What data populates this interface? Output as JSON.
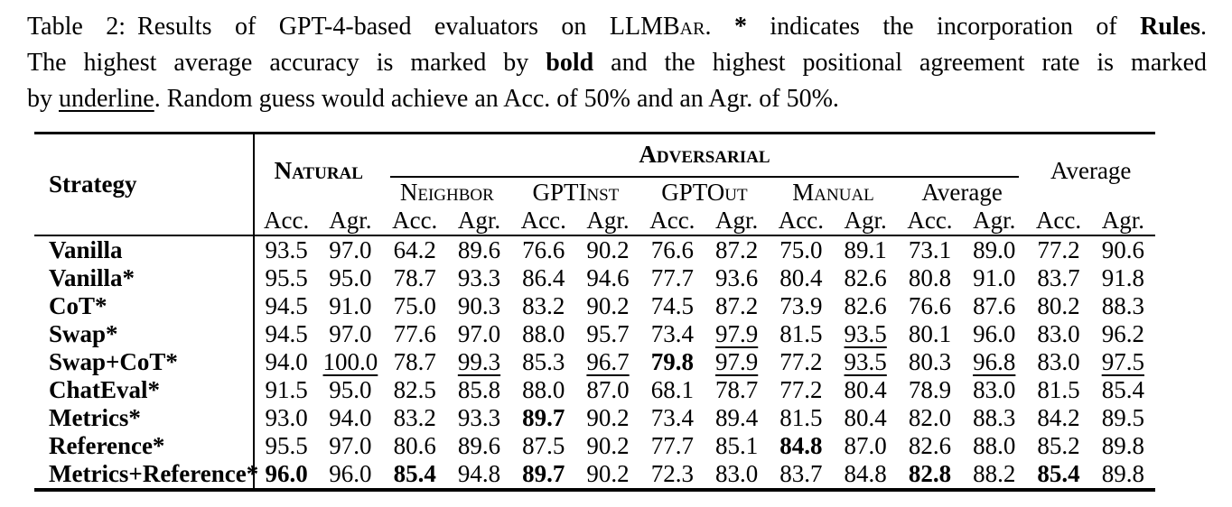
{
  "caption": {
    "lines": [
      [
        {
          "t": "Table 2:",
          "style": "label"
        },
        {
          "t": "Results of GPT-4-based evaluators on ",
          "style": ""
        },
        {
          "t": "LLMBar",
          "style": "sc"
        },
        {
          "t": ". ",
          "style": ""
        },
        {
          "t": "*",
          "style": "b"
        },
        {
          "t": " indicates the incorporation of ",
          "style": ""
        },
        {
          "t": "Rules",
          "style": "b"
        },
        {
          "t": ".",
          "style": ""
        }
      ],
      [
        {
          "t": "The highest average accuracy is marked by ",
          "style": ""
        },
        {
          "t": "bold",
          "style": "b"
        },
        {
          "t": " and the highest positional agreement rate is marked",
          "style": ""
        }
      ],
      [
        {
          "t": "by ",
          "style": ""
        },
        {
          "t": "underline",
          "style": "u"
        },
        {
          "t": ". Random guess would achieve an Acc. of 50% and an Agr. of 50%.",
          "style": ""
        }
      ]
    ]
  },
  "table": {
    "header": {
      "strategy": "Strategy",
      "natural": "Natural",
      "adversarial": "Adversarial",
      "average": "Average",
      "adv_groups": [
        "Neighbor",
        "GPTInst",
        "GPTOut",
        "Manual",
        "Average"
      ],
      "acc": "Acc.",
      "agr": "Agr."
    },
    "rows": [
      {
        "strategy": "Vanilla",
        "cells": [
          "93.5",
          "97.0",
          "64.2",
          "89.6",
          "76.6",
          "90.2",
          "76.6",
          "87.2",
          "75.0",
          "89.1",
          "73.1",
          "89.0",
          "77.2",
          "90.6"
        ]
      },
      {
        "strategy": "Vanilla*",
        "cells": [
          "95.5",
          "95.0",
          "78.7",
          "93.3",
          "86.4",
          "94.6",
          "77.7",
          "93.6",
          "80.4",
          "82.6",
          "80.8",
          "91.0",
          "83.7",
          "91.8"
        ]
      },
      {
        "strategy": "CoT*",
        "cells": [
          "94.5",
          "91.0",
          "75.0",
          "90.3",
          "83.2",
          "90.2",
          "74.5",
          "87.2",
          "73.9",
          "82.6",
          "76.6",
          "87.6",
          "80.2",
          "88.3"
        ]
      },
      {
        "strategy": "Swap*",
        "cells": [
          "94.5",
          "97.0",
          "77.6",
          "97.0",
          "88.0",
          "95.7",
          "73.4",
          "u:97.9",
          "81.5",
          "u:93.5",
          "80.1",
          "96.0",
          "83.0",
          "96.2"
        ]
      },
      {
        "strategy": "Swap+CoT*",
        "cells": [
          "94.0",
          "u:100.0",
          "78.7",
          "u:99.3",
          "85.3",
          "u:96.7",
          "b:79.8",
          "u:97.9",
          "77.2",
          "u:93.5",
          "80.3",
          "u:96.8",
          "83.0",
          "u:97.5"
        ]
      },
      {
        "strategy": "ChatEval*",
        "cells": [
          "91.5",
          "95.0",
          "82.5",
          "85.8",
          "88.0",
          "87.0",
          "68.1",
          "78.7",
          "77.2",
          "80.4",
          "78.9",
          "83.0",
          "81.5",
          "85.4"
        ]
      },
      {
        "strategy": "Metrics*",
        "cells": [
          "93.0",
          "94.0",
          "83.2",
          "93.3",
          "b:89.7",
          "90.2",
          "73.4",
          "89.4",
          "81.5",
          "80.4",
          "82.0",
          "88.3",
          "84.2",
          "89.5"
        ]
      },
      {
        "strategy": "Reference*",
        "cells": [
          "95.5",
          "97.0",
          "80.6",
          "89.6",
          "87.5",
          "90.2",
          "77.7",
          "85.1",
          "b:84.8",
          "87.0",
          "82.6",
          "88.0",
          "85.2",
          "89.8"
        ]
      },
      {
        "strategy": "Metrics+Reference*",
        "cells": [
          "b:96.0",
          "96.0",
          "b:85.4",
          "94.8",
          "b:89.7",
          "90.2",
          "72.3",
          "83.0",
          "83.7",
          "84.8",
          "b:82.8",
          "88.2",
          "b:85.4",
          "89.8"
        ]
      }
    ]
  }
}
